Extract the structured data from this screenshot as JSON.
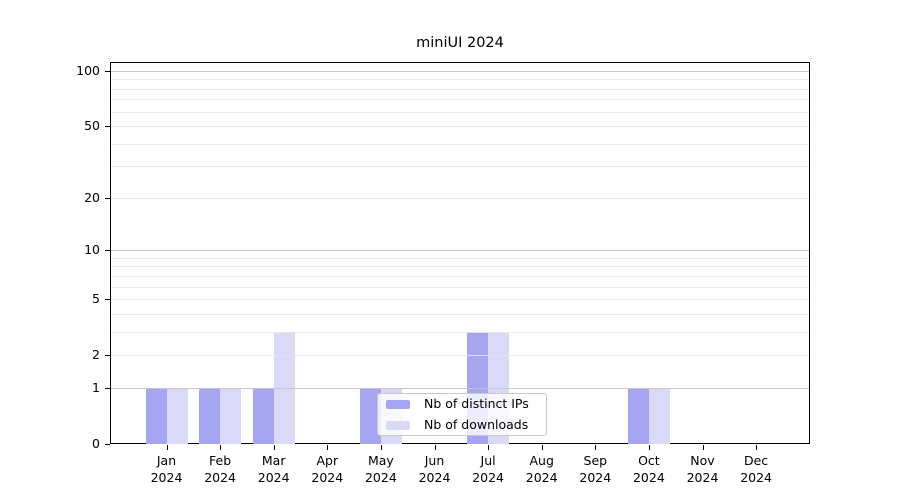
{
  "chart_data": {
    "type": "bar",
    "title": "miniUI 2024",
    "year": "2024",
    "categories": [
      "Jan",
      "Feb",
      "Mar",
      "Apr",
      "May",
      "Jun",
      "Jul",
      "Aug",
      "Sep",
      "Oct",
      "Nov",
      "Dec"
    ],
    "series": [
      {
        "name": "Nb of distinct IPs",
        "color": "#a5a5f2",
        "values": [
          1,
          1,
          1,
          0,
          1,
          0,
          3,
          0,
          0,
          1,
          0,
          0
        ]
      },
      {
        "name": "Nb of downloads",
        "color": "#dadaf8",
        "values": [
          1,
          1,
          3,
          0,
          1,
          0,
          3,
          0,
          0,
          1,
          0,
          0
        ]
      }
    ],
    "yticks": [
      0,
      1,
      2,
      5,
      10,
      20,
      50,
      100
    ],
    "scale": "log1p",
    "ylim": [
      0,
      112
    ],
    "grid": {
      "major": [
        1,
        10,
        100
      ],
      "minor": [
        2,
        3,
        4,
        5,
        6,
        7,
        8,
        9,
        20,
        30,
        40,
        50,
        60,
        70,
        80,
        90
      ]
    },
    "legend_position": "inside-bottom-center",
    "colors": {
      "axis": "#000000",
      "grid_major": "#c6c6c6",
      "grid_minor": "#e6e6e6"
    }
  }
}
